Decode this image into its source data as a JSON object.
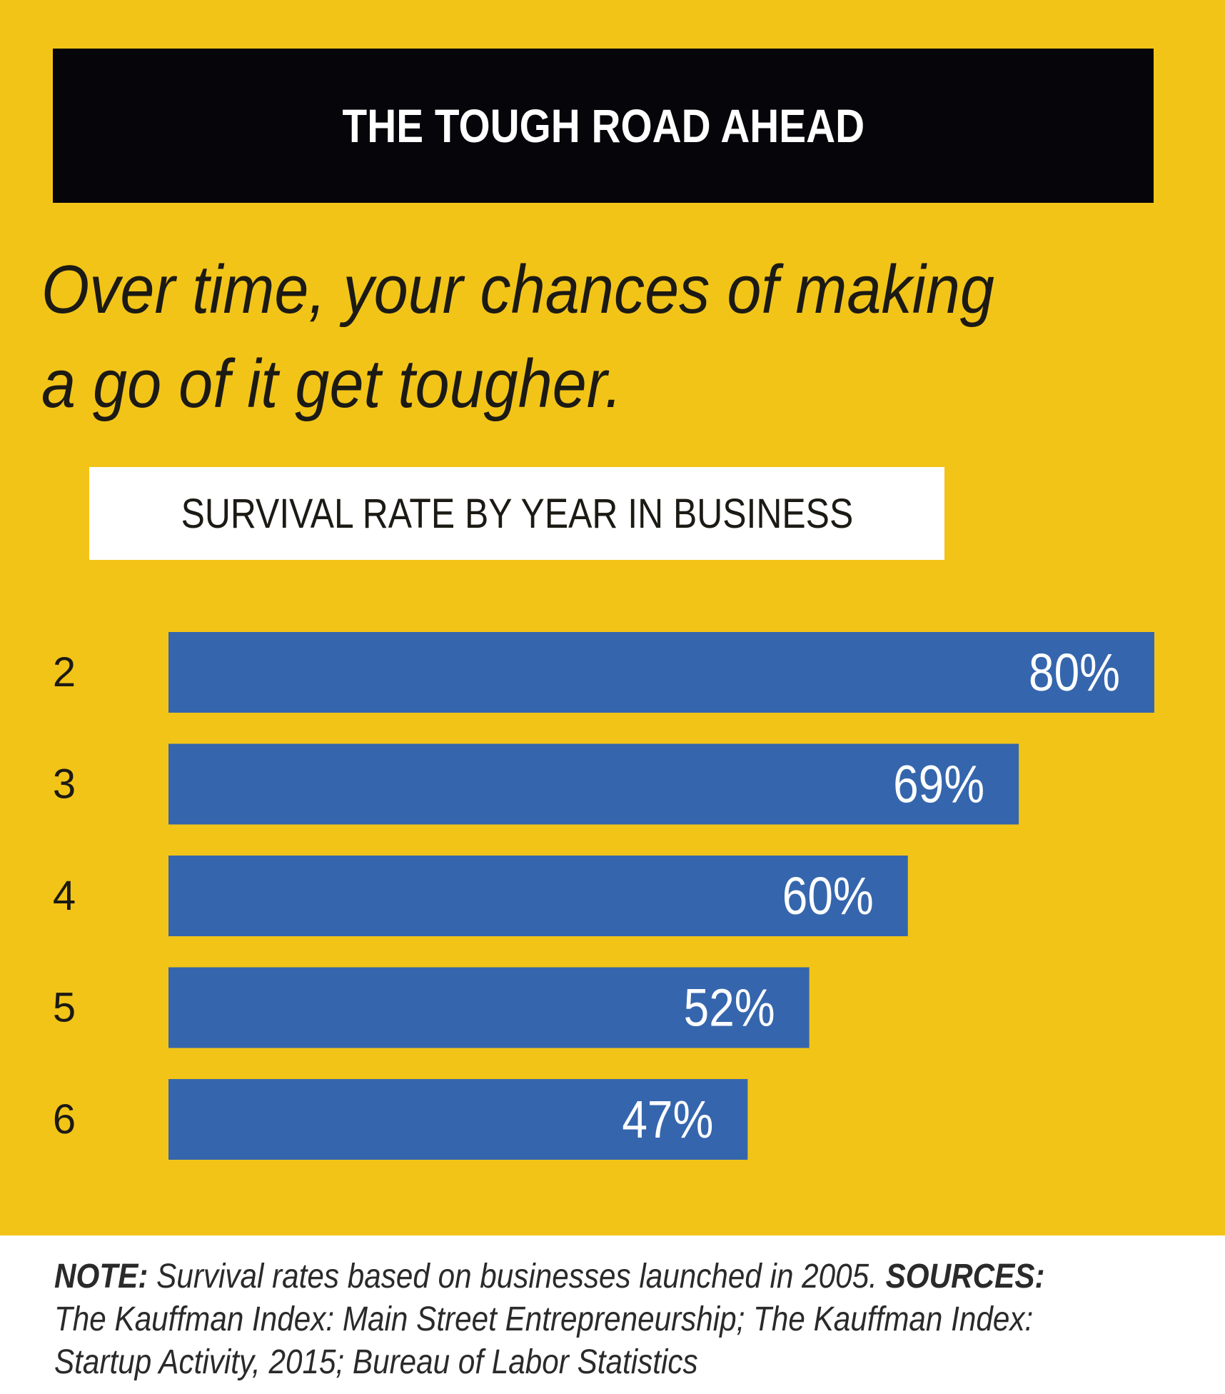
{
  "colors": {
    "background": "#f2c418",
    "title_bar": "#05050a",
    "bar": "#3566ad",
    "text": "#1c1a14"
  },
  "title": "THE TOUGH ROAD AHEAD",
  "subtitle_line1": "Over time, your chances of making",
  "subtitle_line2": "a go of it get tougher.",
  "chart_title": "SURVIVAL RATE BY YEAR IN BUSINESS",
  "chart_data": {
    "type": "bar",
    "orientation": "horizontal",
    "categories": [
      "2",
      "3",
      "4",
      "5",
      "6"
    ],
    "values": [
      80,
      69,
      60,
      52,
      47
    ],
    "value_labels": [
      "80%",
      "69%",
      "60%",
      "52%",
      "47%"
    ],
    "title": "SURVIVAL RATE BY YEAR IN BUSINESS",
    "xlim": [
      0,
      80
    ],
    "grid": false
  },
  "footer": {
    "note_label": "NOTE:",
    "note_text": "Survival rates based on businesses launched in 2005.",
    "sources_label": "SOURCES:",
    "sources_text": "The Kauffman Index: Main Street Entrepreneurship; The Kauffman Index: Startup Activity, 2015; Bureau of Labor Statistics"
  }
}
